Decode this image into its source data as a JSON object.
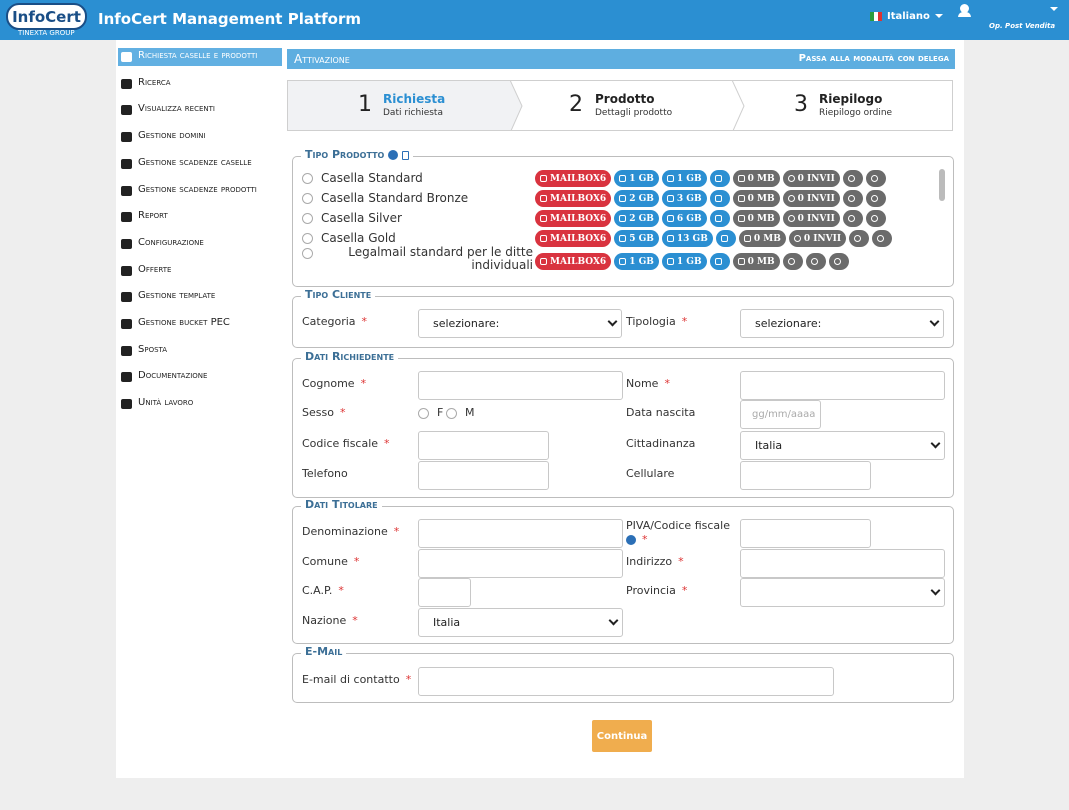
{
  "header": {
    "logo": "InfoCert",
    "logo_sub": "TINEXTA GROUP",
    "title": "InfoCert Management Platform",
    "language": "Italiano",
    "user": "Op. Post Vendita"
  },
  "sidebar": [
    "Richiesta caselle e prodotti",
    "Ricerca",
    "Visualizza recenti",
    "Gestione domini",
    "Gestione scadenze caselle",
    "Gestione scadenze prodotti",
    "Report",
    "Configurazione",
    "Offerte",
    "Gestione template",
    "Gestione bucket PEC",
    "Sposta",
    "Documentazione",
    "Unità lavoro"
  ],
  "section": {
    "title": "Attivazione",
    "link": "Passa alla modalità con delega"
  },
  "steps": [
    {
      "number": "1",
      "title": "Richiesta",
      "subtitle": "Dati richiesta"
    },
    {
      "number": "2",
      "title": "Prodotto",
      "subtitle": "Dettagli prodotto"
    },
    {
      "number": "3",
      "title": "Riepilogo",
      "subtitle": "Riepilogo ordine"
    }
  ],
  "tipo_prodotto": {
    "legend": "Tipo Prodotto",
    "products": [
      {
        "name": "Casella Standard",
        "type": "MAILBOX6",
        "storage": "1 GB",
        "archive": "1 GB",
        "space": "0 MB",
        "sends": "0 INVII"
      },
      {
        "name": "Casella Standard Bronze",
        "type": "MAILBOX6",
        "storage": "2 GB",
        "archive": "3 GB",
        "space": "0 MB",
        "sends": "0 INVII"
      },
      {
        "name": "Casella Silver",
        "type": "MAILBOX6",
        "storage": "2 GB",
        "archive": "6 GB",
        "space": "0 MB",
        "sends": "0 INVII"
      },
      {
        "name": "Casella Gold",
        "type": "MAILBOX6",
        "storage": "5 GB",
        "archive": "13 GB",
        "space": "0 MB",
        "sends": "0 INVII"
      },
      {
        "name": "Legalmail standard per le ditte individuali",
        "type": "MAILBOX6",
        "storage": "1 GB",
        "archive": "1 GB",
        "space": "0 MB"
      }
    ]
  },
  "form": {
    "required_mark": "*",
    "sections": [
      {
        "legend": "Tipo Cliente",
        "fields": [
          {
            "label": "Categoria",
            "required": true,
            "value": "selezionare:"
          },
          {
            "label": "Tipologia",
            "required": true,
            "value": "selezionare:"
          }
        ]
      },
      {
        "legend": "Dati Richiedente",
        "fields": [
          {
            "label": "Cognome",
            "required": true
          },
          {
            "label": "Nome",
            "required": true
          },
          {
            "label": "Sesso",
            "required": true,
            "options": [
              "F",
              "M"
            ]
          },
          {
            "label": "Data nascita",
            "placeholder": "gg/mm/aaaa"
          },
          {
            "label": "Codice fiscale",
            "required": true
          },
          {
            "label": "Cittadinanza",
            "value": "Italia"
          },
          {
            "label": "Telefono"
          },
          {
            "label": "Cellulare"
          }
        ]
      },
      {
        "legend": "Dati Titolare",
        "fields": [
          {
            "label": "Denominazione",
            "required": true
          },
          {
            "label": "PIVA/Codice fiscale",
            "required": true
          },
          {
            "label": "Comune",
            "required": true
          },
          {
            "label": "Indirizzo",
            "required": true
          },
          {
            "label": "C.A.P.",
            "required": true
          },
          {
            "label": "Provincia",
            "required": true
          },
          {
            "label": "Nazione",
            "required": true,
            "value": "Italia"
          }
        ]
      },
      {
        "legend": "E-Mail",
        "fields": [
          {
            "label": "E-mail di contatto",
            "required": true
          }
        ]
      }
    ]
  },
  "button": "Continua"
}
